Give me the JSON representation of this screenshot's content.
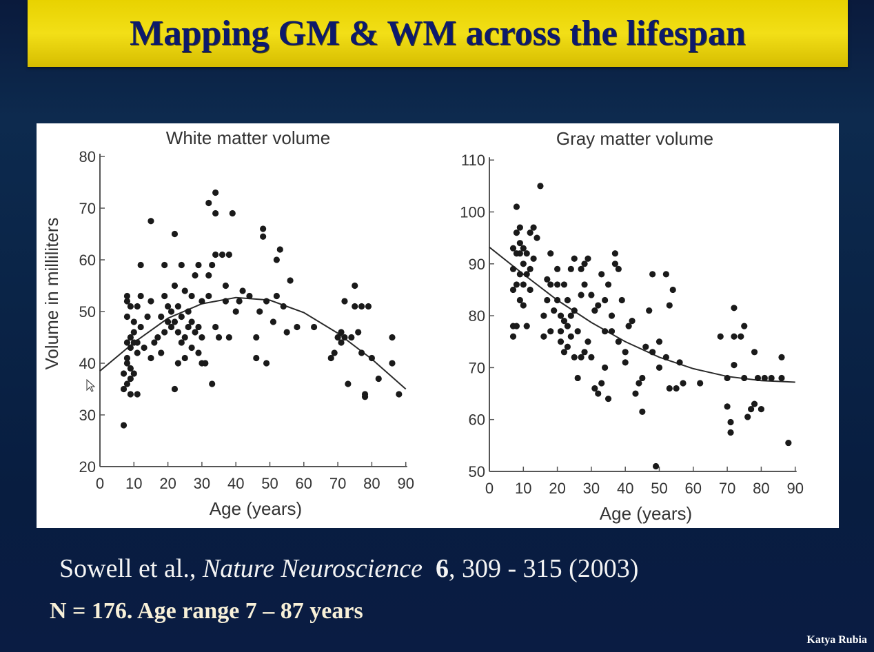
{
  "slide": {
    "title": "Mapping GM & WM across the lifespan",
    "citation_authors": "Sowell et al.,",
    "citation_journal": "Nature Neuroscience",
    "citation_volume": "6",
    "citation_pages": ", 309 - 315 (2003)",
    "sample_info": "N = 176. Age range 7 – 87 years",
    "author_credit": "Katya Rubia"
  },
  "colors": {
    "title_bar": "#f2df17",
    "title_text": "#0d1a6b",
    "background": "#0a2447",
    "points": "#1a1a1a",
    "curve": "#2a2a2a"
  },
  "chart_data": [
    {
      "type": "scatter",
      "title": "White matter volume",
      "xlabel": "Age (years)",
      "ylabel": "Volume in milliliters",
      "xlim": [
        0,
        90
      ],
      "ylim": [
        20,
        80
      ],
      "xticks": [
        0,
        10,
        20,
        30,
        40,
        50,
        60,
        70,
        80,
        90
      ],
      "yticks": [
        20,
        30,
        40,
        50,
        60,
        70,
        80
      ],
      "grid": false,
      "legend": "none",
      "points": [
        [
          7,
          28
        ],
        [
          7,
          35
        ],
        [
          7,
          38
        ],
        [
          8,
          36
        ],
        [
          8,
          40
        ],
        [
          8,
          41
        ],
        [
          8,
          44
        ],
        [
          8,
          49
        ],
        [
          8,
          52
        ],
        [
          8,
          53
        ],
        [
          9,
          34
        ],
        [
          9,
          37
        ],
        [
          9,
          39
        ],
        [
          9,
          43
        ],
        [
          9,
          45
        ],
        [
          9,
          51
        ],
        [
          10,
          38
        ],
        [
          10,
          44
        ],
        [
          10,
          46
        ],
        [
          10,
          48
        ],
        [
          11,
          34
        ],
        [
          11,
          42
        ],
        [
          11,
          44
        ],
        [
          11,
          51
        ],
        [
          12,
          47
        ],
        [
          12,
          53
        ],
        [
          12,
          59
        ],
        [
          13,
          43
        ],
        [
          14,
          49
        ],
        [
          15,
          41
        ],
        [
          15,
          52
        ],
        [
          15,
          67.5
        ],
        [
          16,
          44
        ],
        [
          17,
          45
        ],
        [
          18,
          42
        ],
        [
          18,
          49
        ],
        [
          19,
          46
        ],
        [
          19,
          53
        ],
        [
          19,
          59
        ],
        [
          20,
          48
        ],
        [
          20,
          51
        ],
        [
          21,
          47
        ],
        [
          21,
          50
        ],
        [
          22,
          35
        ],
        [
          22,
          48
        ],
        [
          22,
          55
        ],
        [
          22,
          65
        ],
        [
          23,
          40
        ],
        [
          23,
          46
        ],
        [
          23,
          51
        ],
        [
          24,
          44
        ],
        [
          24,
          49
        ],
        [
          24,
          59
        ],
        [
          25,
          41
        ],
        [
          25,
          45
        ],
        [
          25,
          54
        ],
        [
          26,
          47
        ],
        [
          26,
          50
        ],
        [
          27,
          43
        ],
        [
          27,
          48
        ],
        [
          27,
          53
        ],
        [
          28,
          46
        ],
        [
          28,
          57
        ],
        [
          29,
          42
        ],
        [
          29,
          47
        ],
        [
          29,
          59
        ],
        [
          30,
          40
        ],
        [
          30,
          45
        ],
        [
          30,
          52
        ],
        [
          31,
          40
        ],
        [
          32,
          53
        ],
        [
          32,
          57
        ],
        [
          32,
          71
        ],
        [
          33,
          36
        ],
        [
          33,
          59
        ],
        [
          34,
          47
        ],
        [
          34,
          61
        ],
        [
          34,
          69
        ],
        [
          34,
          73
        ],
        [
          35,
          45
        ],
        [
          36,
          61
        ],
        [
          37,
          52
        ],
        [
          37,
          55
        ],
        [
          38,
          45
        ],
        [
          38,
          61
        ],
        [
          39,
          69
        ],
        [
          40,
          50
        ],
        [
          41,
          52
        ],
        [
          42,
          54
        ],
        [
          44,
          53
        ],
        [
          46,
          41
        ],
        [
          46,
          45
        ],
        [
          47,
          50
        ],
        [
          48,
          64.5
        ],
        [
          48,
          66
        ],
        [
          49,
          40
        ],
        [
          49,
          52
        ],
        [
          51,
          48
        ],
        [
          52,
          53
        ],
        [
          52,
          60
        ],
        [
          53,
          62
        ],
        [
          54,
          51
        ],
        [
          55,
          46
        ],
        [
          56,
          56
        ],
        [
          58,
          47
        ],
        [
          63,
          47
        ],
        [
          68,
          41
        ],
        [
          69,
          42
        ],
        [
          70,
          45
        ],
        [
          71,
          44
        ],
        [
          71,
          46
        ],
        [
          72,
          45
        ],
        [
          72,
          52
        ],
        [
          73,
          36
        ],
        [
          74,
          45
        ],
        [
          75,
          51
        ],
        [
          75,
          55
        ],
        [
          76,
          46
        ],
        [
          77,
          42
        ],
        [
          77,
          51
        ],
        [
          78,
          33.5
        ],
        [
          78,
          34
        ],
        [
          79,
          51
        ],
        [
          80,
          41
        ],
        [
          82,
          37
        ],
        [
          86,
          40
        ],
        [
          86,
          45
        ],
        [
          88,
          34
        ]
      ],
      "fit_curve": [
        [
          0,
          38.5
        ],
        [
          10,
          44
        ],
        [
          20,
          48.7
        ],
        [
          30,
          51.5
        ],
        [
          40,
          52.7
        ],
        [
          50,
          52.2
        ],
        [
          60,
          49.8
        ],
        [
          70,
          45.8
        ],
        [
          80,
          40.8
        ],
        [
          90,
          35
        ]
      ]
    },
    {
      "type": "scatter",
      "title": "Gray matter volume",
      "xlabel": "Age (years)",
      "ylabel": "",
      "xlim": [
        0,
        90
      ],
      "ylim": [
        50,
        110
      ],
      "xticks": [
        0,
        10,
        20,
        30,
        40,
        50,
        60,
        70,
        80,
        90
      ],
      "yticks": [
        50,
        60,
        70,
        80,
        90,
        100,
        110
      ],
      "grid": false,
      "legend": "none",
      "points": [
        [
          7,
          76
        ],
        [
          7,
          78
        ],
        [
          7,
          85
        ],
        [
          7,
          89
        ],
        [
          7,
          93
        ],
        [
          8,
          78
        ],
        [
          8,
          86
        ],
        [
          8,
          92
        ],
        [
          8,
          96
        ],
        [
          8,
          101
        ],
        [
          9,
          83
        ],
        [
          9,
          88
        ],
        [
          9,
          92
        ],
        [
          9,
          94
        ],
        [
          9,
          97
        ],
        [
          10,
          82
        ],
        [
          10,
          86
        ],
        [
          10,
          90
        ],
        [
          10,
          93
        ],
        [
          11,
          78
        ],
        [
          11,
          88
        ],
        [
          11,
          92
        ],
        [
          12,
          85
        ],
        [
          12,
          89
        ],
        [
          12,
          96
        ],
        [
          13,
          91
        ],
        [
          13,
          97
        ],
        [
          14,
          95
        ],
        [
          15,
          105
        ],
        [
          16,
          76
        ],
        [
          16,
          80
        ],
        [
          17,
          83
        ],
        [
          17,
          87
        ],
        [
          18,
          77
        ],
        [
          18,
          86
        ],
        [
          18,
          92
        ],
        [
          19,
          81
        ],
        [
          20,
          83
        ],
        [
          20,
          86
        ],
        [
          20,
          89
        ],
        [
          21,
          75
        ],
        [
          21,
          77
        ],
        [
          21,
          80
        ],
        [
          22,
          73
        ],
        [
          22,
          79
        ],
        [
          22,
          86
        ],
        [
          23,
          74
        ],
        [
          23,
          78
        ],
        [
          23,
          83
        ],
        [
          24,
          76
        ],
        [
          24,
          80
        ],
        [
          24,
          89
        ],
        [
          25,
          72
        ],
        [
          25,
          81
        ],
        [
          25,
          91
        ],
        [
          26,
          68
        ],
        [
          26,
          77
        ],
        [
          27,
          72
        ],
        [
          27,
          84
        ],
        [
          27,
          89
        ],
        [
          28,
          73
        ],
        [
          28,
          86
        ],
        [
          28,
          90
        ],
        [
          29,
          75
        ],
        [
          29,
          91
        ],
        [
          30,
          72
        ],
        [
          30,
          84
        ],
        [
          31,
          66
        ],
        [
          31,
          81
        ],
        [
          32,
          65
        ],
        [
          32,
          82
        ],
        [
          33,
          67
        ],
        [
          33,
          88
        ],
        [
          34,
          70
        ],
        [
          34,
          77
        ],
        [
          34,
          83
        ],
        [
          35,
          64
        ],
        [
          35,
          86
        ],
        [
          36,
          77
        ],
        [
          36,
          80
        ],
        [
          37,
          92
        ],
        [
          37,
          90
        ],
        [
          38,
          75
        ],
        [
          38,
          89
        ],
        [
          39,
          83
        ],
        [
          40,
          71
        ],
        [
          40,
          73
        ],
        [
          41,
          78
        ],
        [
          42,
          79
        ],
        [
          43,
          65
        ],
        [
          44,
          67
        ],
        [
          45,
          61.5
        ],
        [
          45,
          68
        ],
        [
          46,
          74
        ],
        [
          47,
          81
        ],
        [
          48,
          73
        ],
        [
          48,
          88
        ],
        [
          49,
          51
        ],
        [
          50,
          75
        ],
        [
          50,
          70
        ],
        [
          52,
          88
        ],
        [
          52,
          72
        ],
        [
          53,
          66
        ],
        [
          53,
          82
        ],
        [
          54,
          85
        ],
        [
          55,
          66
        ],
        [
          56,
          71
        ],
        [
          57,
          67
        ],
        [
          62,
          67
        ],
        [
          68,
          76
        ],
        [
          70,
          62.5
        ],
        [
          70,
          68
        ],
        [
          71,
          59.5
        ],
        [
          71,
          57.5
        ],
        [
          72,
          76
        ],
        [
          72,
          70.5
        ],
        [
          72,
          81.5
        ],
        [
          74,
          76
        ],
        [
          75,
          68
        ],
        [
          75,
          78
        ],
        [
          76,
          60.5
        ],
        [
          77,
          62
        ],
        [
          78,
          63
        ],
        [
          78,
          73
        ],
        [
          79,
          68
        ],
        [
          80,
          62
        ],
        [
          81,
          68
        ],
        [
          83,
          68
        ],
        [
          86,
          72
        ],
        [
          86,
          68
        ],
        [
          88,
          55.5
        ]
      ],
      "fit_curve": [
        [
          0,
          93.2
        ],
        [
          10,
          88
        ],
        [
          20,
          83
        ],
        [
          30,
          78.7
        ],
        [
          40,
          75
        ],
        [
          50,
          72
        ],
        [
          60,
          69.8
        ],
        [
          70,
          68.3
        ],
        [
          80,
          67.5
        ],
        [
          90,
          67.2
        ]
      ]
    }
  ]
}
